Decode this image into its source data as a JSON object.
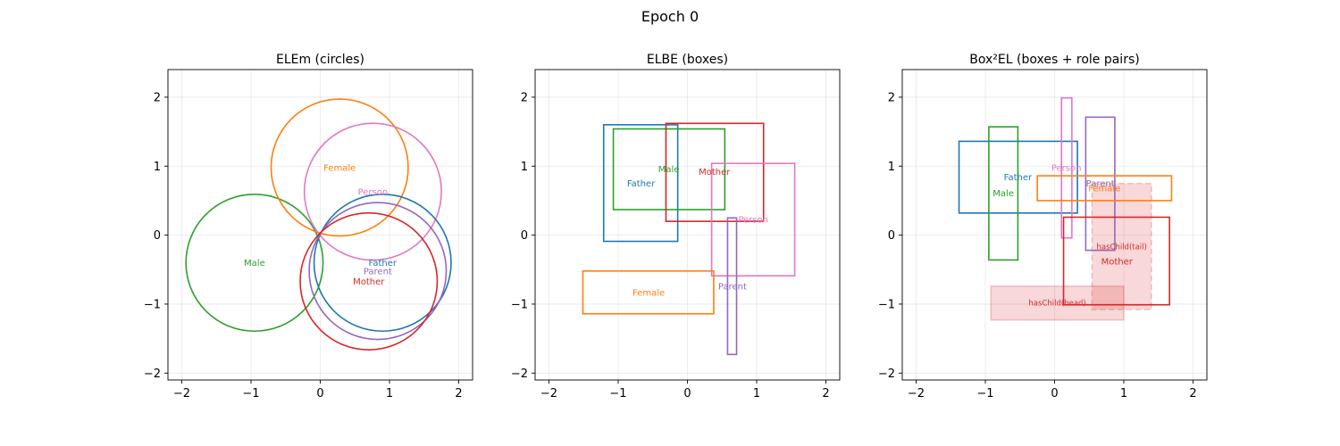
{
  "figure_title": "Epoch 0",
  "chart_data": [
    {
      "type": "scatter",
      "title": "ELEm (circles)",
      "xlim": [
        -2.2,
        2.2
      ],
      "ylim": [
        -2.1,
        2.4
      ],
      "x_ticks": [
        -2,
        -1,
        0,
        1,
        2
      ],
      "y_ticks": [
        -2,
        -1,
        0,
        1,
        2
      ],
      "x_tick_labels": [
        "−2",
        "−1",
        "0",
        "1",
        "2"
      ],
      "y_tick_labels": [
        "−2",
        "−1",
        "0",
        "1",
        "2"
      ],
      "grid": true,
      "circles": [
        {
          "name": "Male",
          "center": [
            -0.95,
            -0.4
          ],
          "radius": 0.99,
          "color": "#2ca02c"
        },
        {
          "name": "Female",
          "center": [
            0.28,
            0.98
          ],
          "radius": 0.99,
          "color": "#ff7f0e"
        },
        {
          "name": "Person",
          "center": [
            0.76,
            0.63
          ],
          "radius": 0.99,
          "color": "#e377c2"
        },
        {
          "name": "Father",
          "center": [
            0.9,
            -0.4
          ],
          "radius": 0.99,
          "color": "#1f77b4"
        },
        {
          "name": "Parent",
          "center": [
            0.83,
            -0.52
          ],
          "radius": 0.99,
          "color": "#9467bd"
        },
        {
          "name": "Mother",
          "center": [
            0.7,
            -0.67
          ],
          "radius": 0.99,
          "color": "#d62728"
        }
      ]
    },
    {
      "type": "scatter",
      "title": "ELBE (boxes)",
      "xlim": [
        -2.2,
        2.2
      ],
      "ylim": [
        -2.1,
        2.4
      ],
      "x_ticks": [
        -2,
        -1,
        0,
        1,
        2
      ],
      "y_ticks": [
        -2,
        -1,
        0,
        1,
        2
      ],
      "x_tick_labels": [
        "−2",
        "−1",
        "0",
        "1",
        "2"
      ],
      "y_tick_labels": [
        "−2",
        "−1",
        "0",
        "1",
        "2"
      ],
      "grid": true,
      "boxes": [
        {
          "name": "Father",
          "x": [
            -1.21,
            -0.14
          ],
          "y": [
            -0.09,
            1.6
          ],
          "label_at": [
            -0.67,
            0.75
          ],
          "color": "#1f77b4"
        },
        {
          "name": "Male",
          "x": [
            -1.07,
            0.54
          ],
          "y": [
            0.37,
            1.54
          ],
          "label_at": [
            -0.27,
            0.96
          ],
          "color": "#2ca02c"
        },
        {
          "name": "Mother",
          "x": [
            -0.31,
            1.1
          ],
          "y": [
            0.2,
            1.62
          ],
          "label_at": [
            0.39,
            0.92
          ],
          "color": "#d62728"
        },
        {
          "name": "Person",
          "x": [
            0.35,
            1.55
          ],
          "y": [
            -0.59,
            1.04
          ],
          "label_at": [
            0.95,
            0.23
          ],
          "color": "#e377c2"
        },
        {
          "name": "Parent",
          "x": [
            0.58,
            0.71
          ],
          "y": [
            -1.73,
            0.25
          ],
          "label_at": [
            0.65,
            -0.74
          ],
          "color": "#9467bd"
        },
        {
          "name": "Female",
          "x": [
            -1.51,
            0.38
          ],
          "y": [
            -1.14,
            -0.52
          ],
          "label_at": [
            -0.56,
            -0.83
          ],
          "color": "#ff7f0e"
        }
      ]
    },
    {
      "type": "scatter",
      "title": "Box²EL (boxes + role pairs)",
      "xlim": [
        -2.2,
        2.2
      ],
      "ylim": [
        -2.1,
        2.4
      ],
      "x_ticks": [
        -2,
        -1,
        0,
        1,
        2
      ],
      "y_ticks": [
        -2,
        -1,
        0,
        1,
        2
      ],
      "x_tick_labels": [
        "−2",
        "−1",
        "0",
        "1",
        "2"
      ],
      "y_tick_labels": [
        "−2",
        "−1",
        "0",
        "1",
        "2"
      ],
      "grid": true,
      "role_boxes": [
        {
          "name": "hasChild(tail)",
          "x": [
            0.54,
            1.4
          ],
          "y": [
            -1.08,
            0.75
          ],
          "label_at": [
            0.97,
            -0.17
          ],
          "color": "#d62728",
          "dashed": true
        },
        {
          "name": "hasChild(head)",
          "x": [
            -0.92,
            1.0
          ],
          "y": [
            -1.23,
            -0.74
          ],
          "label_at": [
            0.04,
            -0.98
          ],
          "color": "#d62728",
          "dashed": false
        }
      ],
      "boxes": [
        {
          "name": "Father",
          "x": [
            -1.38,
            0.33
          ],
          "y": [
            0.32,
            1.36
          ],
          "label_at": [
            -0.53,
            0.84
          ],
          "color": "#1f77b4"
        },
        {
          "name": "Male",
          "x": [
            -0.95,
            -0.53
          ],
          "y": [
            -0.36,
            1.57
          ],
          "label_at": [
            -0.74,
            0.61
          ],
          "color": "#2ca02c"
        },
        {
          "name": "Person",
          "x": [
            0.1,
            0.25
          ],
          "y": [
            -0.04,
            1.99
          ],
          "label_at": [
            0.17,
            0.98
          ],
          "color": "#e377c2"
        },
        {
          "name": "Parent",
          "x": [
            0.45,
            0.87
          ],
          "y": [
            -0.22,
            1.71
          ],
          "label_at": [
            0.66,
            0.75
          ],
          "color": "#9467bd"
        },
        {
          "name": "Female",
          "x": [
            -0.25,
            1.69
          ],
          "y": [
            0.5,
            0.86
          ],
          "label_at": [
            0.72,
            0.68
          ],
          "color": "#ff7f0e"
        },
        {
          "name": "Mother",
          "x": [
            0.13,
            1.66
          ],
          "y": [
            -1.01,
            0.26
          ],
          "label_at": [
            0.9,
            -0.38
          ],
          "color": "#d62728"
        }
      ]
    }
  ]
}
